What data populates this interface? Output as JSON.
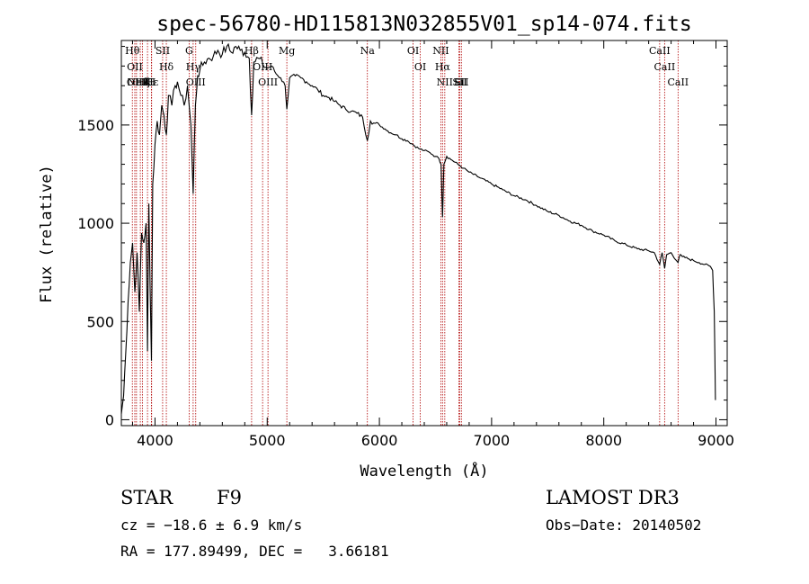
{
  "chart_data": {
    "type": "line",
    "title": "spec-56780-HD115813N032855V01_sp14-074.fits",
    "xlabel": "Wavelength (Å)",
    "ylabel": "Flux (relative)",
    "xlim": [
      3700,
      9100
    ],
    "ylim": [
      -30,
      1930
    ],
    "xticks": [
      4000,
      5000,
      6000,
      7000,
      8000,
      9000
    ],
    "yticks": [
      0,
      500,
      1000,
      1500
    ],
    "x": [
      3700,
      3720,
      3740,
      3760,
      3780,
      3800,
      3820,
      3840,
      3860,
      3880,
      3900,
      3920,
      3933,
      3945,
      3968,
      3980,
      4000,
      4020,
      4040,
      4060,
      4080,
      4101,
      4120,
      4150,
      4180,
      4200,
      4230,
      4260,
      4290,
      4320,
      4340,
      4360,
      4380,
      4400,
      4440,
      4480,
      4520,
      4560,
      4600,
      4640,
      4680,
      4720,
      4760,
      4800,
      4840,
      4861,
      4880,
      4920,
      4960,
      5000,
      5040,
      5080,
      5120,
      5160,
      5175,
      5200,
      5250,
      5300,
      5350,
      5400,
      5450,
      5500,
      5550,
      5600,
      5650,
      5700,
      5750,
      5800,
      5850,
      5893,
      5920,
      5950,
      6000,
      6050,
      6100,
      6150,
      6200,
      6250,
      6300,
      6350,
      6400,
      6450,
      6500,
      6530,
      6550,
      6563,
      6575,
      6600,
      6650,
      6700,
      6750,
      6800,
      6900,
      7000,
      7100,
      7200,
      7300,
      7400,
      7500,
      7600,
      7700,
      7800,
      7900,
      8000,
      8100,
      8200,
      8300,
      8400,
      8450,
      8498,
      8520,
      8542,
      8560,
      8600,
      8662,
      8680,
      8700,
      8750,
      8800,
      8850,
      8900,
      8950,
      8970,
      8985,
      8995
    ],
    "series": [
      {
        "name": "flux",
        "values": [
          30,
          120,
          350,
          600,
          800,
          900,
          650,
          850,
          550,
          950,
          900,
          1000,
          350,
          1100,
          300,
          1200,
          1400,
          1520,
          1450,
          1600,
          1550,
          1450,
          1650,
          1600,
          1700,
          1720,
          1650,
          1600,
          1700,
          1500,
          1150,
          1600,
          1750,
          1780,
          1820,
          1840,
          1850,
          1880,
          1860,
          1900,
          1870,
          1900,
          1880,
          1870,
          1840,
          1550,
          1820,
          1840,
          1810,
          1790,
          1800,
          1760,
          1740,
          1700,
          1580,
          1740,
          1750,
          1740,
          1720,
          1700,
          1680,
          1650,
          1640,
          1620,
          1600,
          1580,
          1570,
          1560,
          1540,
          1420,
          1520,
          1510,
          1500,
          1480,
          1460,
          1450,
          1430,
          1420,
          1400,
          1380,
          1370,
          1360,
          1340,
          1330,
          1300,
          1030,
          1300,
          1340,
          1320,
          1300,
          1280,
          1260,
          1230,
          1200,
          1170,
          1140,
          1120,
          1090,
          1060,
          1040,
          1010,
          990,
          960,
          940,
          910,
          890,
          870,
          860,
          850,
          790,
          850,
          770,
          840,
          850,
          800,
          840,
          830,
          820,
          810,
          800,
          790,
          780,
          760,
          550,
          100
        ]
      }
    ],
    "lines": [
      {
        "wl": 3798,
        "label": "Hθ"
      },
      {
        "wl": 3820,
        "label": "OII"
      },
      {
        "wl": 3835,
        "label": "OIII"
      },
      {
        "wl": 3889,
        "label": "Hζ"
      },
      {
        "wl": 3869,
        "label": "NeIII"
      },
      {
        "wl": 3933,
        "label": "K"
      },
      {
        "wl": 3968,
        "label": "H"
      },
      {
        "wl": 3970,
        "label": "Hε"
      },
      {
        "wl": 4068,
        "label": "SII"
      },
      {
        "wl": 4101,
        "label": "Hδ"
      },
      {
        "wl": 4304,
        "label": "G"
      },
      {
        "wl": 4340,
        "label": "Hγ"
      },
      {
        "wl": 4363,
        "label": "OIII"
      },
      {
        "wl": 4861,
        "label": "Hβ"
      },
      {
        "wl": 4959,
        "label": "OIII"
      },
      {
        "wl": 5007,
        "label": "OIII"
      },
      {
        "wl": 5175,
        "label": "Mg"
      },
      {
        "wl": 5893,
        "label": "Na"
      },
      {
        "wl": 6300,
        "label": "OI"
      },
      {
        "wl": 6364,
        "label": "OI"
      },
      {
        "wl": 6548,
        "label": "NII"
      },
      {
        "wl": 6563,
        "label": "Hα"
      },
      {
        "wl": 6583,
        "label": "NII"
      },
      {
        "wl": 6708,
        "label": "Li"
      },
      {
        "wl": 6716,
        "label": "SII"
      },
      {
        "wl": 6731,
        "label": "SII"
      },
      {
        "wl": 8498,
        "label": "CaII"
      },
      {
        "wl": 8542,
        "label": "CaII"
      },
      {
        "wl": 8662,
        "label": "CaII"
      }
    ]
  },
  "annotations": {
    "object_type": "STAR",
    "subclass": "F9",
    "survey": "LAMOST DR3",
    "cz": "cz = −18.6 ± 6.9 km/s",
    "obs_date": "Obs−Date: 20140502",
    "radec": "RA = 177.89499, DEC =   3.66181"
  },
  "colors": {
    "line_marker": "#b00000",
    "spectrum": "#000000",
    "axes": "#000000"
  }
}
